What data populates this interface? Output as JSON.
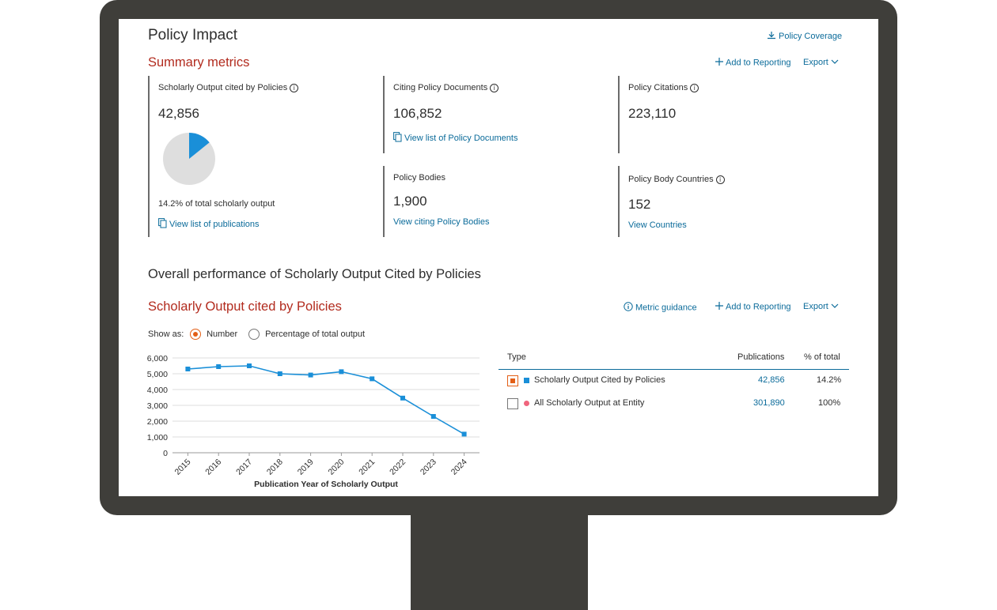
{
  "page": {
    "title": "Policy Impact",
    "policy_coverage": "Policy Coverage",
    "summary_title": "Summary metrics",
    "add_to_reporting": "Add to Reporting",
    "export": "Export"
  },
  "metrics": {
    "scholarly": {
      "label": "Scholarly Output cited by Policies",
      "value": "42,856",
      "share_text": "14.2% of total scholarly output",
      "share": 0.142,
      "link": "View list of publications"
    },
    "citing_docs": {
      "label": "Citing Policy Documents",
      "value": "106,852",
      "link": "View list of Policy Documents"
    },
    "citations": {
      "label": "Policy Citations",
      "value": "223,110"
    },
    "bodies": {
      "label": "Policy Bodies",
      "value": "1,900",
      "link": "View citing Policy Bodies"
    },
    "countries": {
      "label": "Policy Body Countries",
      "value": "152",
      "link": "View Countries"
    }
  },
  "performance": {
    "title": "Overall performance of Scholarly Output Cited by Policies",
    "chart_title": "Scholarly Output cited by Policies",
    "metric_guidance": "Metric guidance",
    "add_to_reporting": "Add to Reporting",
    "export": "Export",
    "show_as_label": "Show as:",
    "option_number": "Number",
    "option_percentage": "Percentage of total output"
  },
  "table": {
    "headers": {
      "type": "Type",
      "publications": "Publications",
      "pct": "% of total"
    },
    "rows": [
      {
        "type": "Scholarly Output Cited by Policies",
        "publications": "42,856",
        "pct": "14.2%",
        "checked": true,
        "color": "#1a8fd8",
        "marker": "square"
      },
      {
        "type": "All Scholarly Output at Entity",
        "publications": "301,890",
        "pct": "100%",
        "checked": false,
        "color": "#f0657d",
        "marker": "circle"
      }
    ]
  },
  "colors": {
    "accent_red": "#b22b1e",
    "link": "#0b6b9a",
    "series": "#1a8fd8",
    "radio": "#e35f16",
    "pie_rest": "#dedede"
  },
  "chart_data": {
    "type": "line",
    "x": [
      "2015",
      "2016",
      "2017",
      "2018",
      "2019",
      "2020",
      "2021",
      "2022",
      "2023",
      "2024"
    ],
    "series": [
      {
        "values": [
          5300,
          5450,
          5500,
          5000,
          4920,
          5130,
          4680,
          3460,
          2300,
          1180
        ]
      }
    ],
    "ylim": [
      0,
      6000
    ],
    "yticks": [
      0,
      1000,
      2000,
      3000,
      4000,
      5000,
      6000
    ],
    "ytick_labels": [
      "0",
      "1,000",
      "2,000",
      "3,000",
      "4,000",
      "5,000",
      "6,000"
    ],
    "xlabel": "Publication Year of Scholarly Output",
    "ylabel": "",
    "grid": true,
    "legend": "none"
  }
}
